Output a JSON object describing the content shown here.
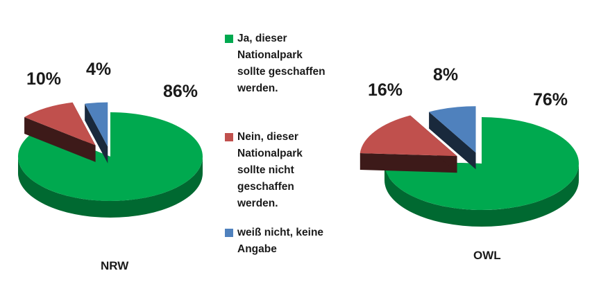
{
  "legend": [
    {
      "lines": [
        "Ja, dieser",
        "Nationalpark",
        "sollte geschaffen",
        "werden."
      ],
      "color": "#00a94f"
    },
    {
      "lines": [
        "Nein, dieser",
        "Nationalpark",
        "sollte nicht",
        "geschaffen",
        "werden."
      ],
      "color": "#c0504d"
    },
    {
      "lines": [
        "weiß nicht, keine",
        "Angabe"
      ],
      "color": "#4f81bd"
    }
  ],
  "chart_data": [
    {
      "type": "pie",
      "name": "NRW",
      "labels": [
        "Ja, dieser Nationalpark sollte geschaffen werden.",
        "Nein, dieser Nationalpark sollte nicht geschaffen werden.",
        "weiß nicht, keine Angabe"
      ],
      "values": [
        86,
        10,
        4
      ],
      "value_labels": [
        "86%",
        "10%",
        "4%"
      ],
      "colors": [
        "#00a94f",
        "#c0504d",
        "#4f81bd"
      ],
      "style": "3d-exploded"
    },
    {
      "type": "pie",
      "name": "OWL",
      "labels": [
        "Ja, dieser Nationalpark sollte geschaffen werden.",
        "Nein, dieser Nationalpark sollte nicht geschaffen werden.",
        "weiß nicht, keine Angabe"
      ],
      "values": [
        76,
        16,
        8
      ],
      "value_labels": [
        "76%",
        "16%",
        "8%"
      ],
      "colors": [
        "#00a94f",
        "#c0504d",
        "#4f81bd"
      ],
      "style": "3d-exploded"
    }
  ]
}
